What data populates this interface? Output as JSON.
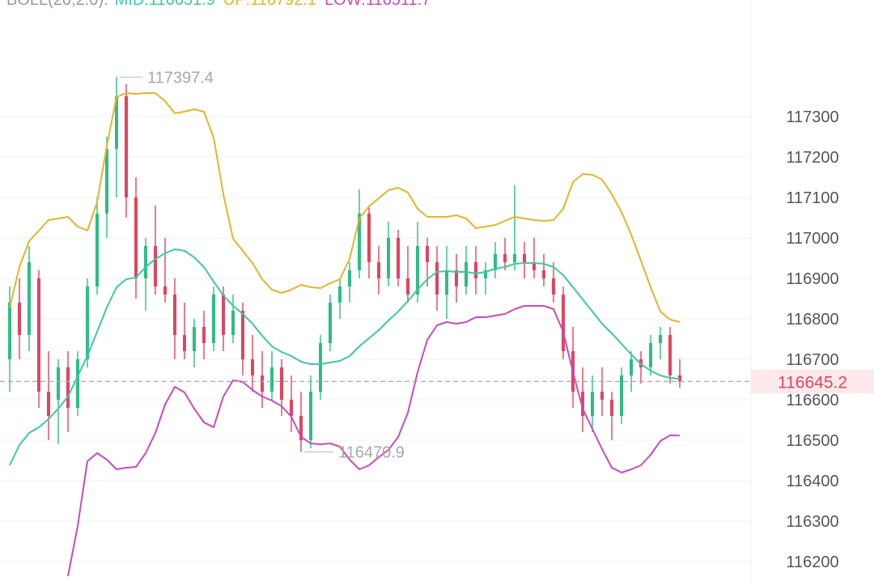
{
  "chart_data": {
    "type": "candlestick",
    "title": "BOLL(20,2.0):",
    "ylim": [
      116152,
      117588
    ],
    "yticks": [
      116200,
      116300,
      116400,
      116500,
      116600,
      116700,
      116800,
      116900,
      117000,
      117100,
      117200,
      117300
    ],
    "grid": true,
    "up_color": "#2ebd85",
    "down_color": "#e0455f",
    "open": [
      116700,
      116840,
      116760,
      116900,
      116620,
      116600,
      116680,
      116580,
      116700,
      116880,
      117060,
      117220,
      117350,
      117100,
      116900,
      116980,
      116880,
      116860,
      116760,
      116720,
      116780,
      116740,
      116860,
      116760,
      116820,
      116700,
      116660,
      116620,
      116680,
      116600,
      116560,
      116500,
      116620,
      116740,
      116840,
      116880,
      116920,
      117060,
      116940,
      116900,
      117000,
      116900,
      116860,
      116980,
      116940,
      116860,
      116920,
      116880,
      116940,
      116900,
      116920,
      116960,
      116940,
      116960,
      116940,
      116920,
      116900,
      116860,
      116720,
      116620,
      116560,
      116620,
      116600,
      116560,
      116660,
      116700,
      116680,
      116740,
      116760,
      116660
    ],
    "high": [
      116880,
      116900,
      116980,
      116920,
      116720,
      116700,
      116720,
      116720,
      116900,
      117100,
      117250,
      117397.4,
      117380,
      117150,
      117000,
      117080,
      117000,
      116900,
      116840,
      116800,
      116820,
      116880,
      116880,
      116860,
      116840,
      116760,
      116720,
      116720,
      116700,
      116660,
      116620,
      116660,
      116760,
      116860,
      116900,
      116940,
      117120,
      117080,
      116980,
      117040,
      117020,
      116980,
      117040,
      117000,
      116980,
      116980,
      116960,
      116980,
      116980,
      116940,
      116990,
      117000,
      117130,
      116990,
      117000,
      116960,
      116940,
      116880,
      116780,
      116680,
      116660,
      116680,
      116620,
      116680,
      116720,
      116720,
      116760,
      116780,
      116780,
      116700
    ],
    "low": [
      116620,
      116700,
      116720,
      116580,
      116500,
      116490,
      116520,
      116560,
      116680,
      116860,
      117000,
      117100,
      117050,
      116850,
      116820,
      116860,
      116840,
      116700,
      116700,
      116680,
      116700,
      116720,
      116720,
      116740,
      116660,
      116620,
      116580,
      116600,
      116560,
      116520,
      116470.9,
      116480,
      116600,
      116720,
      116800,
      116840,
      116900,
      116900,
      116860,
      116880,
      116880,
      116840,
      116840,
      116880,
      116820,
      116800,
      116840,
      116860,
      116860,
      116860,
      116900,
      116920,
      116920,
      116900,
      116900,
      116880,
      116840,
      116700,
      116580,
      116520,
      116520,
      116560,
      116500,
      116540,
      116620,
      116640,
      116660,
      116700,
      116640,
      116630
    ],
    "close": [
      116840,
      116760,
      116940,
      116620,
      116560,
      116680,
      116580,
      116700,
      116880,
      117060,
      117220,
      117350,
      117100,
      116900,
      116980,
      116880,
      116860,
      116760,
      116720,
      116780,
      116740,
      116860,
      116760,
      116820,
      116700,
      116660,
      116620,
      116680,
      116600,
      116560,
      116500,
      116620,
      116740,
      116840,
      116880,
      116920,
      117060,
      116940,
      116900,
      117000,
      116900,
      116860,
      116980,
      116940,
      116860,
      116920,
      116880,
      116940,
      116900,
      116920,
      116960,
      116940,
      116960,
      116940,
      116920,
      116900,
      116860,
      116720,
      116620,
      116560,
      116620,
      116600,
      116560,
      116660,
      116700,
      116680,
      116740,
      116760,
      116660,
      116645.2
    ],
    "series": [
      {
        "name": "MID:",
        "color": "#3cc8a8",
        "values": [
          116438,
          116488,
          116518,
          116532,
          116552,
          116578,
          116608,
          116658,
          116708,
          116768,
          116828,
          116878,
          116898,
          116902,
          116928,
          116948,
          116962,
          116972,
          116968,
          116952,
          116928,
          116892,
          116858,
          116832,
          116812,
          116788,
          116758,
          116732,
          116718,
          116708,
          116694,
          116688,
          116688,
          116692,
          116696,
          116708,
          116732,
          116752,
          116772,
          116796,
          116818,
          116844,
          116872,
          116898,
          116916,
          116918,
          116916,
          116916,
          116912,
          116916,
          116924,
          116928,
          116936,
          116938,
          116938,
          116936,
          116928,
          116908,
          116878,
          116848,
          116818,
          116788,
          116764,
          116738,
          116712,
          116688,
          116672,
          116660,
          116654,
          116651.9
        ]
      },
      {
        "name": "UP:",
        "color": "#e3b52a",
        "values": [
          116828,
          116928,
          116992,
          117018,
          117044,
          117048,
          117052,
          117028,
          117018,
          117088,
          117228,
          117348,
          117358,
          117356,
          117358,
          117358,
          117338,
          117308,
          117312,
          117318,
          117312,
          117248,
          117108,
          116998,
          116968,
          116938,
          116898,
          116872,
          116864,
          116872,
          116884,
          116878,
          116876,
          116888,
          116898,
          116948,
          117048,
          117078,
          117098,
          117118,
          117124,
          117112,
          117072,
          117052,
          117052,
          117052,
          117056,
          117048,
          117024,
          117028,
          117032,
          117042,
          117052,
          117048,
          117044,
          117042,
          117044,
          117072,
          117138,
          117158,
          117156,
          117144,
          117108,
          117064,
          117008,
          116944,
          116878,
          116818,
          116798,
          116792.1
        ]
      },
      {
        "name": "LOW:",
        "color": "#c94bbd",
        "values": [
          null,
          null,
          null,
          null,
          null,
          null,
          116164,
          116288,
          116448,
          116468,
          116452,
          116428,
          116432,
          116434,
          116468,
          116518,
          116588,
          116632,
          116618,
          116578,
          116544,
          116532,
          116608,
          116648,
          116644,
          116624,
          116608,
          116598,
          116584,
          116558,
          116508,
          116492,
          116490,
          116492,
          116484,
          116452,
          116428,
          116438,
          116458,
          116476,
          116508,
          116568,
          116668,
          116748,
          116784,
          116792,
          116788,
          116792,
          116804,
          116804,
          116808,
          116812,
          116824,
          116832,
          116832,
          116832,
          116824,
          116768,
          116668,
          116578,
          116528,
          116478,
          116432,
          116420,
          116428,
          116438,
          116464,
          116498,
          116512,
          116511.7
        ]
      }
    ]
  }
}
